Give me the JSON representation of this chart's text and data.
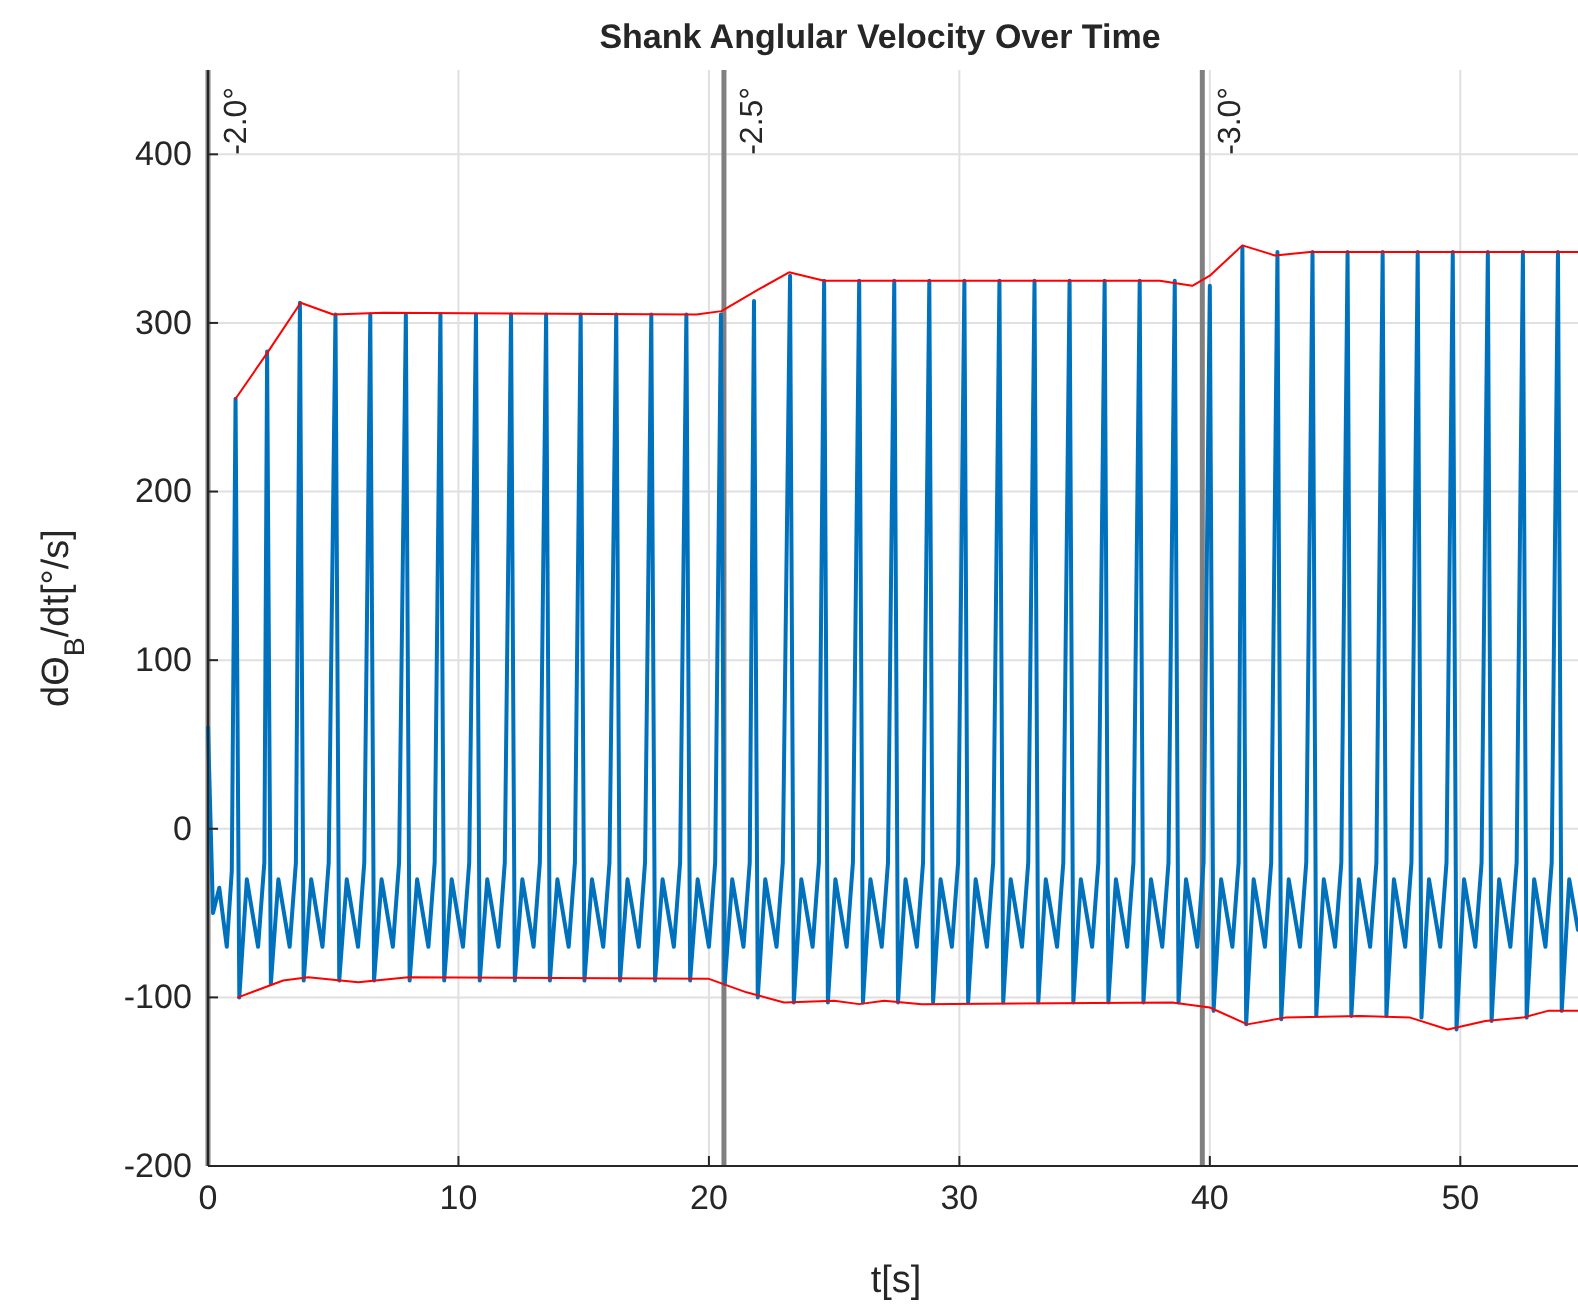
{
  "chart_data": {
    "type": "line",
    "title": "Shank Anglular Velocity Over Time",
    "xlabel": "t[s]",
    "ylabel": "dΘ$_{B}$/dt[°/s]",
    "xlim": [
      0,
      54.7
    ],
    "xticks": [
      0,
      10,
      20,
      30,
      40,
      50
    ],
    "ylim": [
      -200,
      450
    ],
    "yticks": [
      -200,
      -100,
      0,
      100,
      200,
      300,
      400
    ],
    "grid": true,
    "line_style": "solid",
    "marker": "none",
    "ref_lines": [
      {
        "axis": "x",
        "value": 0,
        "color": "#808080"
      },
      {
        "axis": "x",
        "value": 20.6,
        "color": "#808080"
      },
      {
        "axis": "x",
        "value": 39.7,
        "color": "#808080"
      }
    ],
    "annotations": [
      {
        "text": "-2.0°",
        "x": 0,
        "y": 440
      },
      {
        "text": "-2.5°",
        "x": 20.6,
        "y": 440
      },
      {
        "text": "-3.0°",
        "x": 39.7,
        "y": 440
      }
    ],
    "series": [
      {
        "color": "#0072bd",
        "x": [
          0,
          0.2,
          0.45,
          0.75,
          0.95,
          1.1,
          1.25,
          1.55,
          2.0,
          2.25,
          2.36,
          2.51,
          2.81,
          3.26,
          3.51,
          3.67,
          3.82,
          4.12,
          4.57,
          4.82,
          5.09,
          5.24,
          5.54,
          5.99,
          6.24,
          6.48,
          6.63,
          6.93,
          7.38,
          7.63,
          7.9,
          8.05,
          8.35,
          8.8,
          9.05,
          9.28,
          9.43,
          9.73,
          10.18,
          10.43,
          10.7,
          10.85,
          11.15,
          11.6,
          11.85,
          12.1,
          12.25,
          12.55,
          13.0,
          13.25,
          13.5,
          13.65,
          13.95,
          14.4,
          14.65,
          14.88,
          15.03,
          15.33,
          15.78,
          16.03,
          16.3,
          16.45,
          16.75,
          17.2,
          17.45,
          17.7,
          17.85,
          18.15,
          18.6,
          18.85,
          19.1,
          19.25,
          19.55,
          20.0,
          20.25,
          20.48,
          20.63,
          20.93,
          21.38,
          21.63,
          21.8,
          21.95,
          22.25,
          22.7,
          22.95,
          23.24,
          23.39,
          23.69,
          24.14,
          24.39,
          24.6,
          24.75,
          25.05,
          25.5,
          25.75,
          26.0,
          26.15,
          26.45,
          26.9,
          27.15,
          27.4,
          27.55,
          27.85,
          28.3,
          28.55,
          28.8,
          28.95,
          29.25,
          29.7,
          29.95,
          30.2,
          30.35,
          30.65,
          31.1,
          31.35,
          31.6,
          31.75,
          32.05,
          32.5,
          32.75,
          33.0,
          33.15,
          33.45,
          33.9,
          34.15,
          34.4,
          34.55,
          34.85,
          35.3,
          35.55,
          35.8,
          35.95,
          36.25,
          36.7,
          36.95,
          37.2,
          37.35,
          37.65,
          38.1,
          38.35,
          38.6,
          38.75,
          39.05,
          39.5,
          39.75,
          40.0,
          40.15,
          40.45,
          40.9,
          41.15,
          41.3,
          41.45,
          41.75,
          42.2,
          42.45,
          42.7,
          42.85,
          43.15,
          43.6,
          43.85,
          44.1,
          44.25,
          44.55,
          45.0,
          45.25,
          45.5,
          45.65,
          45.95,
          46.4,
          46.65,
          46.9,
          47.05,
          47.35,
          47.8,
          48.05,
          48.3,
          48.45,
          48.75,
          49.2,
          49.45,
          49.7,
          49.85,
          50.15,
          50.6,
          50.85,
          51.1,
          51.25,
          51.55,
          52.0,
          52.25,
          52.5,
          52.65,
          52.95,
          53.4,
          53.65,
          53.9,
          54.05,
          54.35,
          54.7
        ],
        "values": [
          60,
          -50,
          -35,
          -70,
          -25,
          255,
          -100,
          -30,
          -70,
          -20,
          283,
          -92,
          -30,
          -70,
          -20,
          312,
          -90,
          -30,
          -70,
          -20,
          305,
          -90,
          -30,
          -70,
          -20,
          305,
          -90,
          -30,
          -70,
          -20,
          305,
          -90,
          -30,
          -70,
          -20,
          305,
          -90,
          -30,
          -70,
          -20,
          305,
          -90,
          -30,
          -70,
          -20,
          305,
          -90,
          -30,
          -70,
          -20,
          305,
          -90,
          -30,
          -70,
          -20,
          305,
          -90,
          -30,
          -70,
          -20,
          305,
          -90,
          -30,
          -70,
          -20,
          305,
          -90,
          -30,
          -70,
          -20,
          305,
          -90,
          -30,
          -70,
          -20,
          305,
          -92,
          -30,
          -70,
          -20,
          313,
          -100,
          -30,
          -70,
          -20,
          328,
          -103,
          -30,
          -70,
          -20,
          325,
          -103,
          -30,
          -70,
          -20,
          325,
          -103,
          -30,
          -70,
          -20,
          325,
          -103,
          -30,
          -70,
          -20,
          325,
          -103,
          -30,
          -70,
          -20,
          325,
          -103,
          -30,
          -70,
          -20,
          325,
          -103,
          -30,
          -70,
          -20,
          325,
          -103,
          -30,
          -70,
          -20,
          325,
          -103,
          -30,
          -70,
          -20,
          325,
          -103,
          -30,
          -70,
          -20,
          325,
          -103,
          -30,
          -70,
          -20,
          325,
          -103,
          -30,
          -70,
          -20,
          322,
          -108,
          -30,
          -70,
          -20,
          345,
          -116,
          -30,
          -70,
          -20,
          342,
          -113,
          -30,
          -70,
          -20,
          342,
          -111,
          -30,
          -70,
          -20,
          342,
          -111,
          -30,
          -70,
          -20,
          342,
          -111,
          -30,
          -70,
          -20,
          342,
          -112,
          -30,
          -70,
          -20,
          342,
          -119,
          -30,
          -70,
          -20,
          342,
          -114,
          -30,
          -70,
          -20,
          342,
          -112,
          -30,
          -70,
          -20,
          342,
          -108,
          -30,
          -60
        ]
      },
      {
        "color": "#ff0000",
        "x": [
          1.1,
          2.4,
          3.7,
          5,
          7,
          19.5,
          20.5,
          22,
          23.2,
          24.6,
          38,
          39.3,
          40,
          41.3,
          42.6,
          44,
          54.7
        ],
        "values": [
          255,
          283,
          312,
          305,
          306,
          305,
          307,
          320,
          330,
          325,
          325,
          322,
          328,
          346,
          340,
          342,
          342
        ]
      },
      {
        "color": "#ff0000",
        "x": [
          1.2,
          3,
          4,
          6,
          8,
          20,
          21.5,
          23,
          25,
          26,
          27,
          28.5,
          38.5,
          40,
          41.5,
          43,
          46,
          48,
          49.5,
          51,
          52.5,
          53.5,
          54.7
        ],
        "values": [
          -100,
          -90,
          -88,
          -91,
          -88,
          -89,
          -97,
          -103,
          -102,
          -104,
          -102,
          -104,
          -103,
          -106,
          -116,
          -112,
          -111,
          -112,
          -119,
          -114,
          -112,
          -108,
          -108
        ]
      }
    ]
  }
}
